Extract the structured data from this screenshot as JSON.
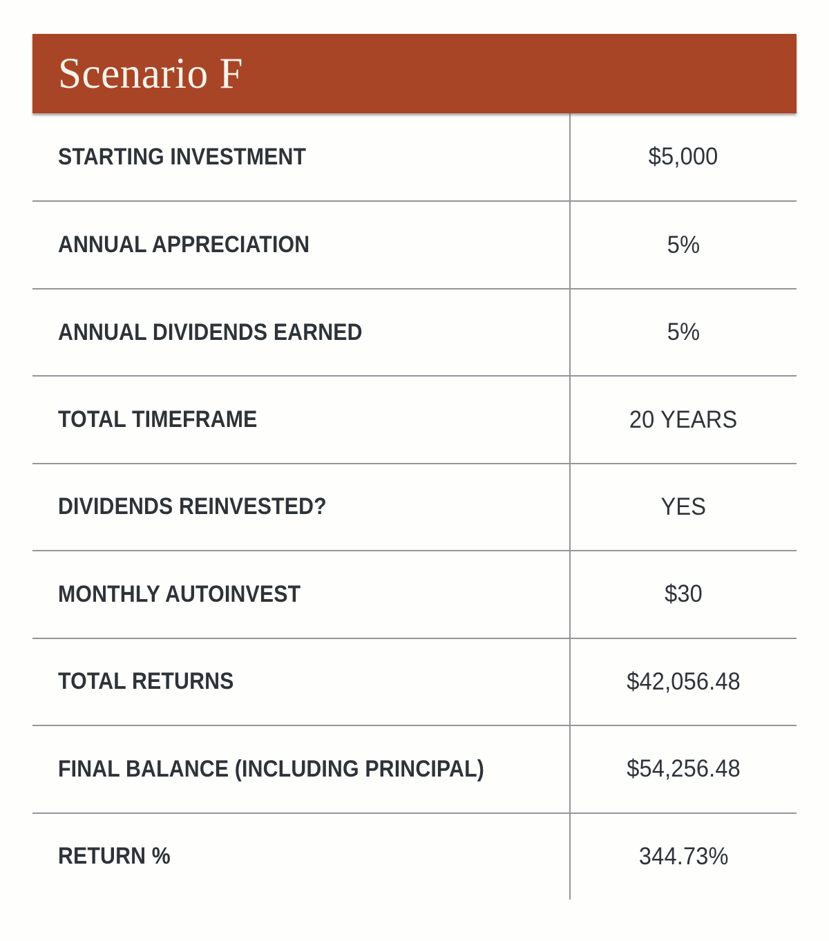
{
  "chart_data": {
    "type": "table",
    "title": "Scenario F",
    "rows": [
      [
        "STARTING INVESTMENT",
        "$5,000"
      ],
      [
        "ANNUAL APPRECIATION",
        "5%"
      ],
      [
        "ANNUAL DIVIDENDS EARNED",
        "5%"
      ],
      [
        "TOTAL TIMEFRAME",
        "20 YEARS"
      ],
      [
        "DIVIDENDS REINVESTED?",
        "YES"
      ],
      [
        "MONTHLY AUTOINVEST",
        "$30"
      ],
      [
        "TOTAL RETURNS",
        "$42,056.48"
      ],
      [
        "FINAL BALANCE (INCLUDING PRINCIPAL)",
        "$54,256.48"
      ],
      [
        "RETURN %",
        "344.73%"
      ]
    ]
  },
  "colors": {
    "header_bg": "#A84527",
    "header_text": "#FAF3EA",
    "text": "#2E3338",
    "divider": "#939598",
    "page_bg": "#FEFEFD"
  }
}
